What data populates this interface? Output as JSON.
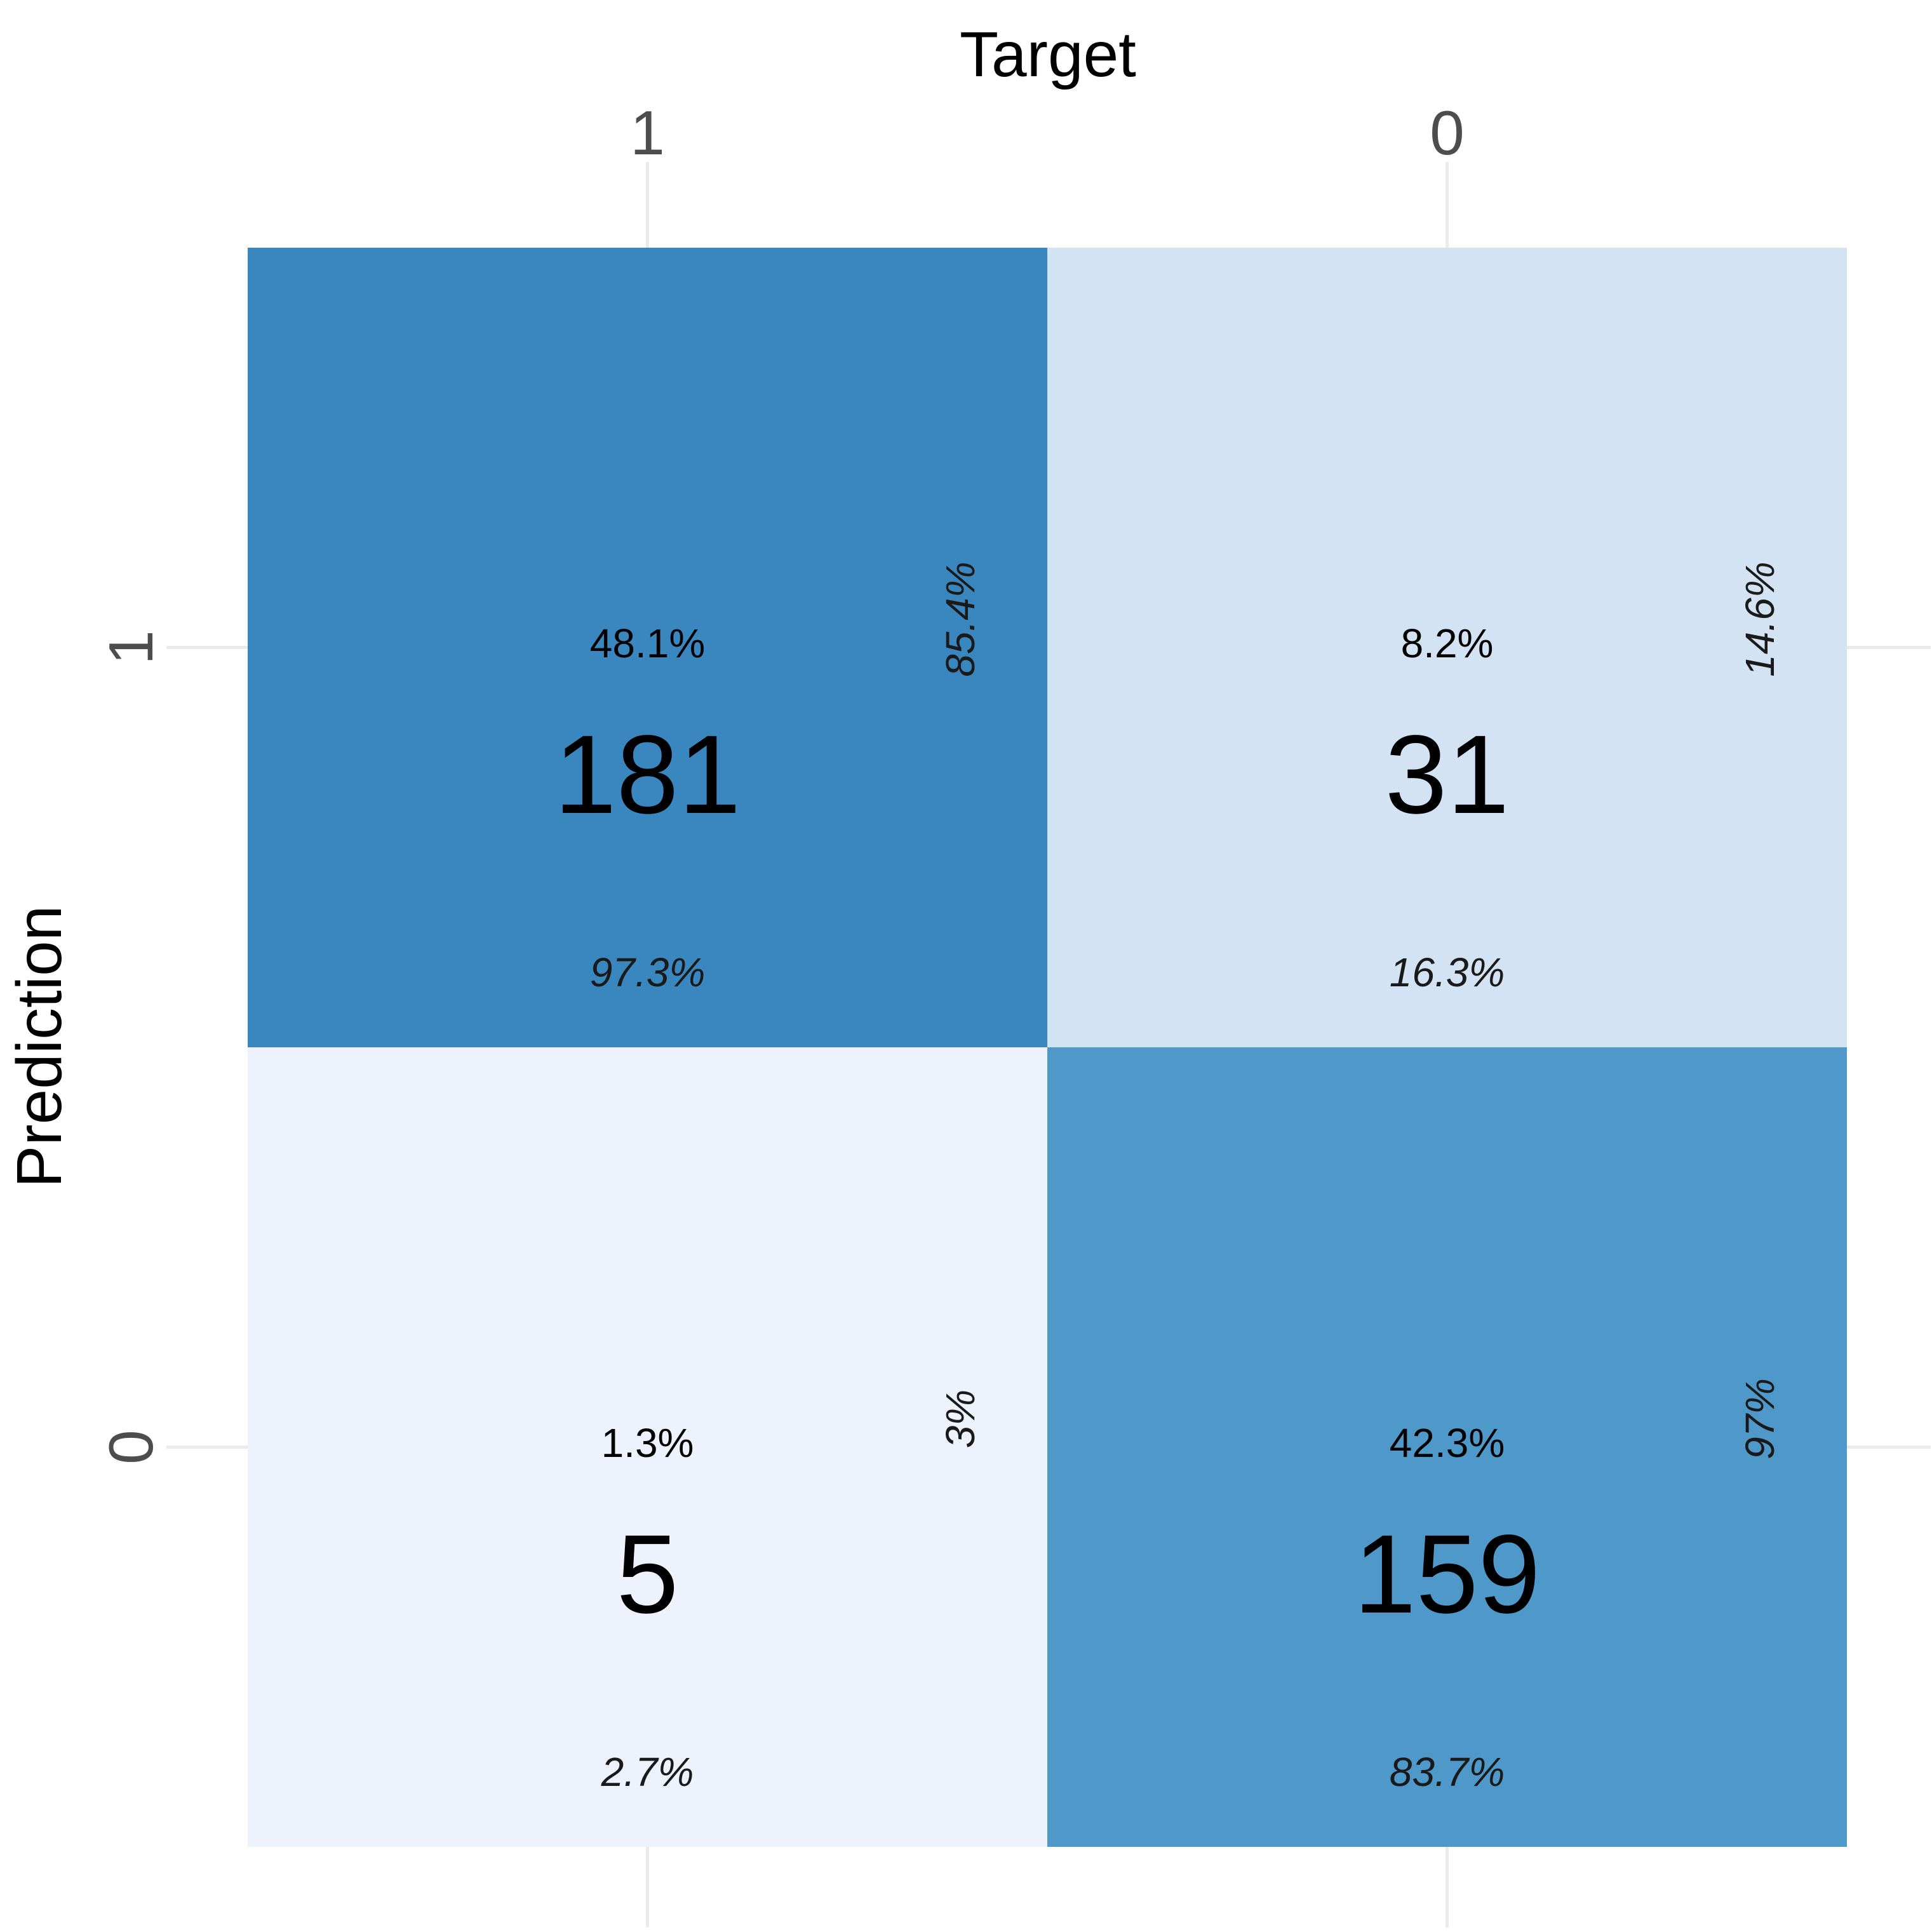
{
  "chart_data": {
    "type": "heatmap",
    "xlabel": "Target",
    "ylabel": "Prediction",
    "x_categories": [
      "1",
      "0"
    ],
    "y_categories": [
      "1",
      "0"
    ],
    "grid": true,
    "colors": {
      "high": "#3a87c0",
      "mid_high": "#4e99c9",
      "low": "#d4e3f3",
      "lowest": "#edf2fc"
    },
    "cells": [
      {
        "target": "1",
        "prediction": "1",
        "count": 181,
        "count_label": "181",
        "overall_pct": "48.1%",
        "row_pct": "85.4%",
        "col_pct": "97.3%",
        "color": "#3a87c0"
      },
      {
        "target": "0",
        "prediction": "1",
        "count": 31,
        "count_label": "31",
        "overall_pct": "8.2%",
        "row_pct": "14.6%",
        "col_pct": "16.3%",
        "color": "#d4e3f3"
      },
      {
        "target": "1",
        "prediction": "0",
        "count": 5,
        "count_label": "5",
        "overall_pct": "1.3%",
        "row_pct": "3%",
        "col_pct": "2.7%",
        "color": "#edf2fc"
      },
      {
        "target": "0",
        "prediction": "0",
        "count": 159,
        "count_label": "159",
        "overall_pct": "42.3%",
        "row_pct": "97%",
        "col_pct": "83.7%",
        "color": "#4e99c9"
      }
    ]
  }
}
